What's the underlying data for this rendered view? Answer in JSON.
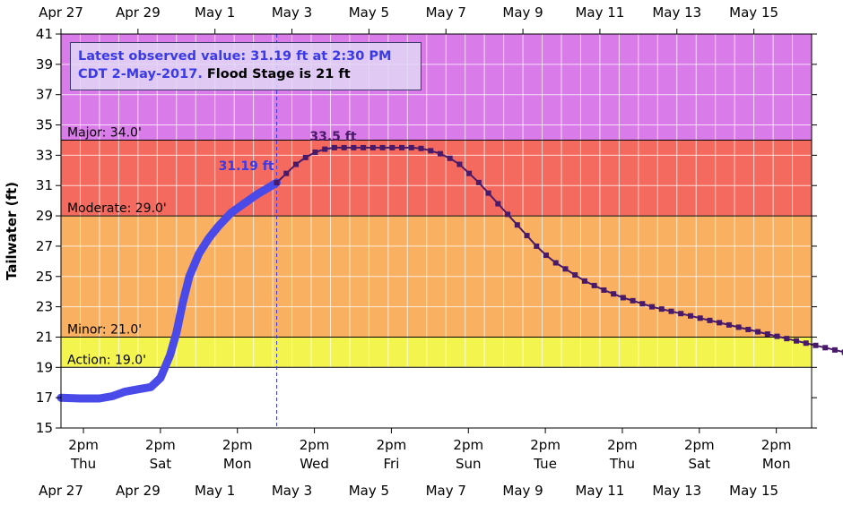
{
  "chart_data": {
    "type": "line",
    "ylabel": "Tailwater (ft)",
    "ylim": [
      15,
      41
    ],
    "y_ticks": [
      15,
      17,
      19,
      21,
      23,
      25,
      27,
      29,
      31,
      33,
      35,
      37,
      39,
      41
    ],
    "x_range": [
      "2017-04-27T00:00",
      "2017-05-16T12:00"
    ],
    "top_date_ticks": [
      {
        "date": "2017-04-27T00:00",
        "label": "Apr 27"
      },
      {
        "date": "2017-04-29T00:00",
        "label": "Apr 29"
      },
      {
        "date": "2017-05-01T00:00",
        "label": "May  1"
      },
      {
        "date": "2017-05-03T00:00",
        "label": "May  3"
      },
      {
        "date": "2017-05-05T00:00",
        "label": "May  5"
      },
      {
        "date": "2017-05-07T00:00",
        "label": "May  7"
      },
      {
        "date": "2017-05-09T00:00",
        "label": "May  9"
      },
      {
        "date": "2017-05-11T00:00",
        "label": "May 11"
      },
      {
        "date": "2017-05-13T00:00",
        "label": "May 13"
      },
      {
        "date": "2017-05-15T00:00",
        "label": "May 15"
      }
    ],
    "bottom_time_ticks": [
      {
        "date": "2017-04-27T14:00",
        "time": "2pm",
        "day": "Thu"
      },
      {
        "date": "2017-04-29T14:00",
        "time": "2pm",
        "day": "Sat"
      },
      {
        "date": "2017-05-01T14:00",
        "time": "2pm",
        "day": "Mon"
      },
      {
        "date": "2017-05-03T14:00",
        "time": "2pm",
        "day": "Wed"
      },
      {
        "date": "2017-05-05T14:00",
        "time": "2pm",
        "day": "Fri"
      },
      {
        "date": "2017-05-07T14:00",
        "time": "2pm",
        "day": "Sun"
      },
      {
        "date": "2017-05-09T14:00",
        "time": "2pm",
        "day": "Tue"
      },
      {
        "date": "2017-05-11T14:00",
        "time": "2pm",
        "day": "Thu"
      },
      {
        "date": "2017-05-13T14:00",
        "time": "2pm",
        "day": "Sat"
      },
      {
        "date": "2017-05-15T14:00",
        "time": "2pm",
        "day": "Mon"
      }
    ],
    "bottom_date_ticks": [
      {
        "date": "2017-04-27T00:00",
        "label": "Apr 27"
      },
      {
        "date": "2017-04-29T00:00",
        "label": "Apr 29"
      },
      {
        "date": "2017-05-01T00:00",
        "label": "May  1"
      },
      {
        "date": "2017-05-03T00:00",
        "label": "May  3"
      },
      {
        "date": "2017-05-05T00:00",
        "label": "May  5"
      },
      {
        "date": "2017-05-07T00:00",
        "label": "May  7"
      },
      {
        "date": "2017-05-09T00:00",
        "label": "May  9"
      },
      {
        "date": "2017-05-11T00:00",
        "label": "May 11"
      },
      {
        "date": "2017-05-13T00:00",
        "label": "May 13"
      },
      {
        "date": "2017-05-15T00:00",
        "label": "May 15"
      }
    ],
    "flood_categories": [
      {
        "label": "Major: 34.0'",
        "from": 34.0,
        "to": 41,
        "color": "#d97be8"
      },
      {
        "label": "Moderate: 29.0'",
        "from": 29.0,
        "to": 34.0,
        "color": "#f56a5e"
      },
      {
        "label": "Minor: 21.0'",
        "from": 21.0,
        "to": 29.0,
        "color": "#f9b060"
      },
      {
        "label": "Action: 19.0'",
        "from": 19.0,
        "to": 21.0,
        "color": "#f4f44e"
      }
    ],
    "now_marker": "2017-05-02T14:30",
    "observed": {
      "color": "#4a4ae8",
      "points": [
        [
          "2017-04-27T00:00",
          17.0
        ],
        [
          "2017-04-27T12:00",
          16.95
        ],
        [
          "2017-04-28T00:00",
          16.95
        ],
        [
          "2017-04-28T08:00",
          17.1
        ],
        [
          "2017-04-28T16:00",
          17.4
        ],
        [
          "2017-04-29T00:00",
          17.55
        ],
        [
          "2017-04-29T08:00",
          17.7
        ],
        [
          "2017-04-29T14:00",
          18.3
        ],
        [
          "2017-04-29T20:00",
          19.8
        ],
        [
          "2017-04-30T00:00",
          21.3
        ],
        [
          "2017-04-30T04:00",
          23.3
        ],
        [
          "2017-04-30T08:00",
          25.0
        ],
        [
          "2017-04-30T14:00",
          26.5
        ],
        [
          "2017-04-30T20:00",
          27.5
        ],
        [
          "2017-05-01T02:00",
          28.3
        ],
        [
          "2017-05-01T10:00",
          29.2
        ],
        [
          "2017-05-01T18:00",
          29.8
        ],
        [
          "2017-05-02T02:00",
          30.4
        ],
        [
          "2017-05-02T10:00",
          30.9
        ],
        [
          "2017-05-02T14:30",
          31.19
        ]
      ],
      "label": "31.19 ft"
    },
    "forecast": {
      "color": "#4a1a6a",
      "start": "2017-05-02T14:30",
      "step_hours": 6,
      "values": [
        31.19,
        31.8,
        32.4,
        32.85,
        33.2,
        33.4,
        33.5,
        33.5,
        33.5,
        33.5,
        33.5,
        33.5,
        33.5,
        33.5,
        33.5,
        33.45,
        33.3,
        33.1,
        32.8,
        32.4,
        31.8,
        31.2,
        30.5,
        29.8,
        29.1,
        28.4,
        27.7,
        27.0,
        26.4,
        25.9,
        25.5,
        25.1,
        24.7,
        24.4,
        24.1,
        23.85,
        23.6,
        23.4,
        23.2,
        23.0,
        22.85,
        22.7,
        22.55,
        22.4,
        22.25,
        22.1,
        21.95,
        21.8,
        21.65,
        21.5,
        21.35,
        21.2,
        21.05,
        20.9,
        20.75,
        20.6,
        20.45,
        20.3,
        20.15,
        20.0
      ],
      "crest_label": "33.5 ft"
    }
  },
  "note": {
    "line1": "Latest observed value: 31.19 ft at 2:30 PM",
    "line2_blue": "CDT 2-May-2017.",
    "line2_black": " Flood Stage is 21 ft"
  }
}
